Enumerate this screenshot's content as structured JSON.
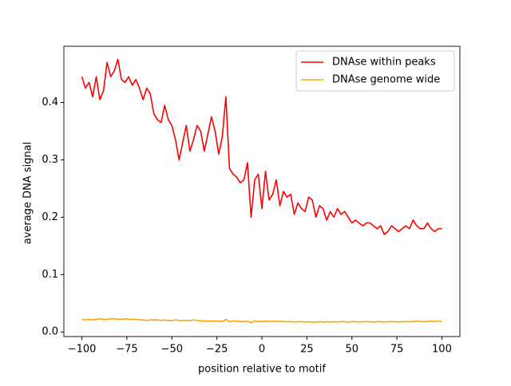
{
  "chart_data": {
    "type": "line",
    "xlabel": "position relative to motif",
    "ylabel": "average DNA signal",
    "x": [
      -100,
      -98,
      -96,
      -94,
      -92,
      -90,
      -88,
      -86,
      -84,
      -82,
      -80,
      -78,
      -76,
      -74,
      -72,
      -70,
      -68,
      -66,
      -64,
      -62,
      -60,
      -58,
      -56,
      -54,
      -52,
      -50,
      -48,
      -46,
      -44,
      -42,
      -40,
      -38,
      -36,
      -34,
      -32,
      -30,
      -28,
      -26,
      -24,
      -22,
      -20,
      -18,
      -16,
      -14,
      -12,
      -10,
      -8,
      -6,
      -4,
      -2,
      0,
      2,
      4,
      6,
      8,
      10,
      12,
      14,
      16,
      18,
      20,
      22,
      24,
      26,
      28,
      30,
      32,
      34,
      36,
      38,
      40,
      42,
      44,
      46,
      48,
      50,
      52,
      54,
      56,
      58,
      60,
      62,
      64,
      66,
      68,
      70,
      72,
      74,
      76,
      78,
      80,
      82,
      84,
      86,
      88,
      90,
      92,
      94,
      96,
      98,
      100
    ],
    "series": [
      {
        "name": "DNAse within peaks",
        "color": "#ff0000",
        "values": [
          0.445,
          0.425,
          0.435,
          0.41,
          0.445,
          0.405,
          0.42,
          0.47,
          0.445,
          0.455,
          0.475,
          0.44,
          0.435,
          0.445,
          0.43,
          0.44,
          0.425,
          0.405,
          0.425,
          0.415,
          0.38,
          0.37,
          0.365,
          0.395,
          0.37,
          0.36,
          0.335,
          0.3,
          0.33,
          0.36,
          0.315,
          0.335,
          0.36,
          0.35,
          0.315,
          0.345,
          0.375,
          0.35,
          0.31,
          0.34,
          0.41,
          0.285,
          0.275,
          0.27,
          0.26,
          0.265,
          0.295,
          0.2,
          0.265,
          0.275,
          0.215,
          0.28,
          0.23,
          0.24,
          0.265,
          0.22,
          0.245,
          0.235,
          0.24,
          0.205,
          0.225,
          0.215,
          0.21,
          0.235,
          0.23,
          0.2,
          0.22,
          0.215,
          0.195,
          0.21,
          0.2,
          0.215,
          0.205,
          0.21,
          0.2,
          0.19,
          0.195,
          0.19,
          0.185,
          0.19,
          0.19,
          0.185,
          0.18,
          0.185,
          0.17,
          0.175,
          0.185,
          0.18,
          0.175,
          0.18,
          0.185,
          0.18,
          0.195,
          0.185,
          0.18,
          0.18,
          0.19,
          0.18,
          0.175,
          0.18,
          0.18
        ]
      },
      {
        "name": "DNAse genome wide",
        "color": "#ffa500",
        "values": [
          0.022,
          0.021,
          0.022,
          0.021,
          0.022,
          0.023,
          0.022,
          0.022,
          0.023,
          0.023,
          0.022,
          0.022,
          0.023,
          0.022,
          0.022,
          0.022,
          0.021,
          0.021,
          0.02,
          0.021,
          0.021,
          0.021,
          0.02,
          0.021,
          0.02,
          0.02,
          0.021,
          0.02,
          0.02,
          0.02,
          0.02,
          0.021,
          0.02,
          0.019,
          0.019,
          0.019,
          0.019,
          0.019,
          0.019,
          0.018,
          0.022,
          0.018,
          0.019,
          0.019,
          0.018,
          0.018,
          0.019,
          0.016,
          0.019,
          0.018,
          0.018,
          0.019,
          0.018,
          0.019,
          0.018,
          0.019,
          0.018,
          0.018,
          0.018,
          0.017,
          0.018,
          0.018,
          0.017,
          0.018,
          0.017,
          0.017,
          0.018,
          0.017,
          0.018,
          0.017,
          0.018,
          0.017,
          0.018,
          0.018,
          0.017,
          0.018,
          0.018,
          0.017,
          0.018,
          0.018,
          0.018,
          0.017,
          0.018,
          0.018,
          0.017,
          0.018,
          0.018,
          0.018,
          0.017,
          0.018,
          0.018,
          0.018,
          0.018,
          0.019,
          0.018,
          0.018,
          0.018,
          0.019,
          0.018,
          0.019,
          0.018
        ]
      }
    ],
    "xlim": [
      -110,
      110
    ],
    "xticks": [
      {
        "value": -100,
        "label": "−100"
      },
      {
        "value": -75,
        "label": "−75"
      },
      {
        "value": -50,
        "label": "−50"
      },
      {
        "value": -25,
        "label": "−25"
      },
      0,
      25,
      50,
      75,
      100
    ],
    "ylim": [
      -0.008,
      0.498
    ],
    "yticks": [
      {
        "value": 0,
        "label": "0.0"
      },
      0.1,
      0.2,
      0.3,
      0.4
    ],
    "legend": "upper right",
    "grid": false
  }
}
